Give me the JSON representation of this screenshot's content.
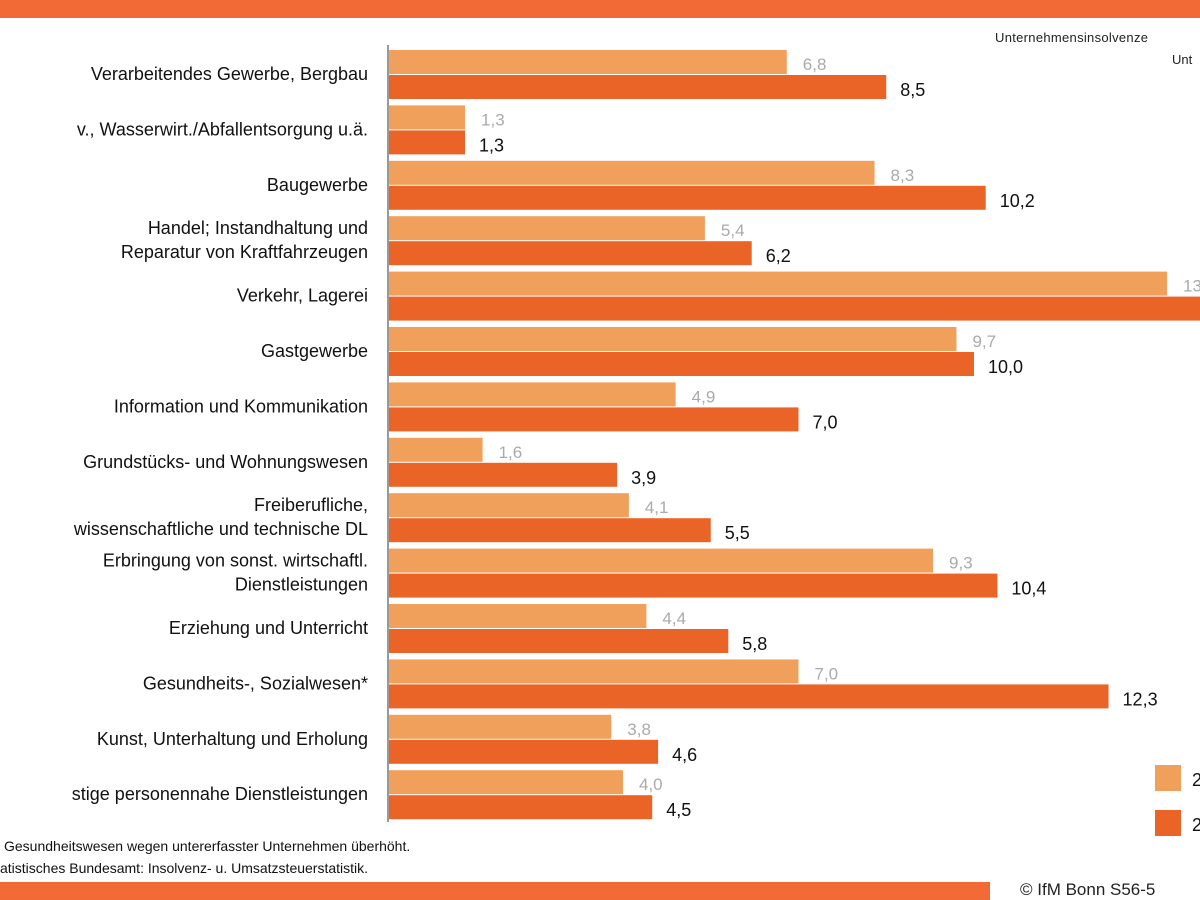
{
  "header": {
    "subtitle_line1": "Unternehmensinsolvenze",
    "subtitle_line2": "Unt"
  },
  "footer": {
    "note1": "Gesundheitswesen wegen untererfasster Unternehmen überhöht.",
    "note2": "atistisches Bundesamt: Insolvenz- u. Umsatzsteuerstatistik.",
    "copyright": "© IfM Bonn S56-5"
  },
  "colors": {
    "series_light": "#f0a05a",
    "series_dark": "#ea6427",
    "accent_bar": "#f26a35"
  },
  "chart_data": {
    "type": "bar",
    "orientation": "horizontal",
    "categories": [
      [
        "Verarbeitendes Gewerbe, Bergbau"
      ],
      [
        "v., Wasserwirt./Abfallentsorgung u.ä."
      ],
      [
        "Baugewerbe"
      ],
      [
        "Handel; Instandhaltung und",
        "Reparatur von Kraftfahrzeugen"
      ],
      [
        "Verkehr, Lagerei"
      ],
      [
        "Gastgewerbe"
      ],
      [
        "Information und Kommunikation"
      ],
      [
        "Grundstücks- und Wohnungswesen"
      ],
      [
        "Freiberufliche,",
        "wissenschaftliche und technische DL"
      ],
      [
        "Erbringung von sonst. wirtschaftl.",
        "Dienstleistungen"
      ],
      [
        "Erziehung und Unterricht"
      ],
      [
        "Gesundheits-, Sozialwesen*"
      ],
      [
        "Kunst, Unterhaltung und Erholung"
      ],
      [
        "stige personennahe Dienstleistungen"
      ]
    ],
    "series": [
      {
        "legend_label": "2",
        "color": "#f0a05a",
        "values": [
          6.8,
          1.3,
          8.3,
          5.4,
          13.3,
          9.7,
          4.9,
          1.6,
          4.1,
          9.3,
          4.4,
          7.0,
          3.8,
          4.0
        ],
        "labels": [
          "6,8",
          "1,3",
          "8,3",
          "5,4",
          "13",
          "9,7",
          "4,9",
          "1,6",
          "4,1",
          "9,3",
          "4,4",
          "7,0",
          "3,8",
          "4,0"
        ]
      },
      {
        "legend_label": "2",
        "color": "#ea6427",
        "values": [
          8.5,
          1.3,
          10.2,
          6.2,
          14.5,
          10.0,
          7.0,
          3.9,
          5.5,
          10.4,
          5.8,
          12.3,
          4.6,
          4.5
        ],
        "labels": [
          "8,5",
          "1,3",
          "10,2",
          "6,2",
          "",
          "10,0",
          "7,0",
          "3,9",
          "5,5",
          "10,4",
          "5,8",
          "12,3",
          "4,6",
          "4,5"
        ]
      }
    ],
    "xlim": [
      0,
      14.5
    ],
    "grid": false,
    "legend_position": "bottom-right"
  }
}
